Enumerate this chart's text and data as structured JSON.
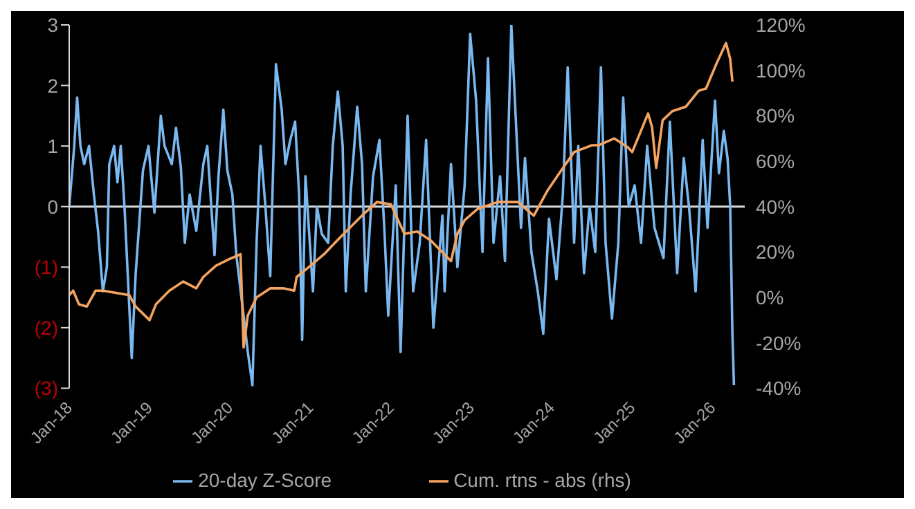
{
  "chart_data": {
    "type": "line",
    "legend": "bottom",
    "grid": false,
    "marker": "none",
    "line_style": "solid",
    "xlim": [
      "2018-01-01",
      "2026-05-27"
    ],
    "xticks": [
      {
        "value": "2018-01-01",
        "label": "Jan-18"
      },
      {
        "value": "2019-01-01",
        "label": "Jan-19"
      },
      {
        "value": "2020-01-01",
        "label": "Jan-20"
      },
      {
        "value": "2021-01-01",
        "label": "Jan-21"
      },
      {
        "value": "2022-01-01",
        "label": "Jan-22"
      },
      {
        "value": "2023-01-01",
        "label": "Jan-23"
      },
      {
        "value": "2024-01-01",
        "label": "Jan-24"
      },
      {
        "value": "2025-01-01",
        "label": "Jan-25"
      },
      {
        "value": "2026-01-01",
        "label": "Jan-26"
      }
    ],
    "ylim": [
      -3,
      3
    ],
    "yticks": [
      {
        "value": -3,
        "label": "(3)"
      },
      {
        "value": -2,
        "label": "(2)"
      },
      {
        "value": -1,
        "label": "(1)"
      },
      0,
      1,
      2,
      3
    ],
    "y2lim": [
      -40,
      120
    ],
    "y2ticks": [
      {
        "value": -40,
        "label": "-40%"
      },
      {
        "value": -20,
        "label": "-20%"
      },
      {
        "value": 0,
        "label": "0%"
      },
      {
        "value": 20,
        "label": "20%"
      },
      {
        "value": 40,
        "label": "40%"
      },
      {
        "value": 60,
        "label": "60%"
      },
      {
        "value": 80,
        "label": "80%"
      },
      {
        "value": 100,
        "label": "100%"
      },
      {
        "value": 120,
        "label": "120%"
      }
    ],
    "ref_lines": [
      {
        "axis": "y",
        "value": 0,
        "color": "#d9d9d9"
      }
    ],
    "series": [
      {
        "name": "20-day Z-Score",
        "color": "#7ab8f0",
        "x": [
          "2018-01-01",
          "2018-01-23",
          "2018-02-06",
          "2018-02-21",
          "2018-03-10",
          "2018-04-01",
          "2018-04-23",
          "2018-05-12",
          "2018-06-03",
          "2018-06-21",
          "2018-07-02",
          "2018-07-24",
          "2018-08-08",
          "2018-08-23",
          "2018-09-09",
          "2018-10-12",
          "2018-10-30",
          "2018-12-02",
          "2018-12-27",
          "2019-01-23",
          "2019-02-21",
          "2019-03-10",
          "2019-04-12",
          "2019-05-01",
          "2019-05-23",
          "2019-06-10",
          "2019-07-02",
          "2019-08-01",
          "2019-09-02",
          "2019-09-20",
          "2019-10-23",
          "2019-11-10",
          "2019-12-02",
          "2019-12-20",
          "2020-01-12",
          "2020-01-30",
          "2020-03-03",
          "2020-03-22",
          "2020-04-12",
          "2020-05-01",
          "2020-05-19",
          "2020-06-10",
          "2020-07-02",
          "2020-07-28",
          "2020-08-23",
          "2020-09-09",
          "2020-10-01",
          "2020-10-23",
          "2020-11-10",
          "2020-11-24",
          "2020-12-09",
          "2021-01-12",
          "2021-01-30",
          "2021-02-21",
          "2021-03-22",
          "2021-04-12",
          "2021-05-05",
          "2021-05-27",
          "2021-06-10",
          "2021-07-02",
          "2021-08-01",
          "2021-08-23",
          "2021-09-09",
          "2021-10-12",
          "2021-11-10",
          "2021-12-02",
          "2021-12-20",
          "2022-01-23",
          "2022-02-14",
          "2022-03-18",
          "2022-04-12",
          "2022-05-12",
          "2022-06-10",
          "2022-07-13",
          "2022-08-23",
          "2022-09-02",
          "2022-10-01",
          "2022-10-30",
          "2022-12-02",
          "2022-12-27",
          "2023-01-23",
          "2023-02-21",
          "2023-03-18",
          "2023-04-12",
          "2023-05-12",
          "2023-06-03",
          "2023-07-02",
          "2023-07-28",
          "2023-08-15",
          "2023-09-02",
          "2023-10-01",
          "2023-10-30",
          "2023-11-24",
          "2023-12-20",
          "2024-01-23",
          "2024-02-21",
          "2024-03-14",
          "2024-04-12",
          "2024-05-01",
          "2024-05-27",
          "2024-06-21",
          "2024-07-17",
          "2024-08-12",
          "2024-09-02",
          "2024-10-01",
          "2024-10-30",
          "2024-11-21",
          "2024-12-16",
          "2025-01-12",
          "2025-02-10",
          "2025-03-10",
          "2025-04-12",
          "2025-05-23",
          "2025-06-21",
          "2025-07-24",
          "2025-08-23",
          "2025-09-17",
          "2025-10-16",
          "2025-11-17",
          "2025-12-09",
          "2026-01-12",
          "2026-01-30",
          "2026-02-21",
          "2026-03-10",
          "2026-03-22",
          "2026-04-01",
          "2026-04-08"
        ],
        "values": [
          0,
          0.96,
          1.8,
          1.0,
          0.7,
          1.0,
          0.2,
          -0.4,
          -1.4,
          -1.0,
          0.7,
          1.0,
          0.4,
          1.0,
          0,
          -2.5,
          -1.1,
          0.6,
          1.0,
          -0.1,
          1.5,
          1.0,
          0.7,
          1.3,
          0.65,
          -0.6,
          0.2,
          -0.4,
          0.7,
          1.0,
          -0.8,
          0.5,
          1.6,
          0.6,
          0.2,
          -0.8,
          -1.8,
          -2.4,
          -2.95,
          -0.6,
          1.0,
          0,
          -1.15,
          2.35,
          1.6,
          0.7,
          1.1,
          1.4,
          0.2,
          -2.2,
          0.5,
          -1.4,
          0,
          -0.45,
          -0.6,
          1.0,
          1.9,
          1.0,
          -1.4,
          0.2,
          1.65,
          0.7,
          -1.4,
          0.5,
          1.1,
          -0.35,
          -1.8,
          0.35,
          -2.4,
          1.5,
          -1.4,
          -0.6,
          1.1,
          -2.0,
          -0.15,
          -1.4,
          0.7,
          -1.0,
          0.35,
          2.85,
          1.75,
          -0.75,
          2.45,
          -0.6,
          0.5,
          -0.9,
          3.0,
          1.0,
          -0.35,
          0.8,
          -0.75,
          -1.4,
          -2.1,
          -0.2,
          -1.2,
          0.2,
          2.3,
          -0.6,
          1.0,
          -1.1,
          0,
          -0.75,
          2.3,
          -0.6,
          -1.85,
          -0.6,
          1.8,
          0,
          0.35,
          -0.6,
          1.0,
          -0.35,
          -0.85,
          1.4,
          -1.1,
          0.8,
          -0.05,
          -1.4,
          1.1,
          -0.35,
          1.75,
          0.55,
          1.25,
          0.8,
          0,
          -2.1,
          -2.95
        ]
      },
      {
        "name": "Cum. rtns - abs (rhs)",
        "color": "#f4a460",
        "axis": "y2",
        "x": [
          "2018-01-01",
          "2018-01-19",
          "2018-02-14",
          "2018-03-22",
          "2018-05-01",
          "2018-06-03",
          "2018-08-01",
          "2018-10-01",
          "2018-10-30",
          "2019-01-01",
          "2019-01-30",
          "2019-04-01",
          "2019-06-03",
          "2019-08-01",
          "2019-09-02",
          "2019-10-30",
          "2020-01-01",
          "2020-02-18",
          "2020-03-03",
          "2020-03-22",
          "2020-05-01",
          "2020-07-02",
          "2020-09-02",
          "2020-10-19",
          "2020-10-30",
          "2021-01-01",
          "2021-03-03",
          "2021-05-01",
          "2021-07-02",
          "2021-09-02",
          "2021-10-30",
          "2022-01-01",
          "2022-03-03",
          "2022-05-01",
          "2022-07-02",
          "2022-10-01",
          "2022-10-30",
          "2022-12-02",
          "2023-01-30",
          "2023-05-01",
          "2023-08-01",
          "2023-10-12",
          "2023-12-13",
          "2024-02-14",
          "2024-04-12",
          "2024-07-02",
          "2024-08-01",
          "2024-10-12",
          "2024-12-13",
          "2025-01-01",
          "2025-03-14",
          "2025-04-01",
          "2025-04-20",
          "2025-05-19",
          "2025-07-02",
          "2025-09-02",
          "2025-10-30",
          "2025-12-02",
          "2026-01-19",
          "2026-03-03",
          "2026-03-22",
          "2026-04-01"
        ],
        "values": [
          1,
          3,
          -3,
          -4,
          3,
          3,
          2,
          1,
          -4,
          -10,
          -3,
          3,
          7,
          4,
          9,
          14,
          17,
          19,
          -22,
          -8,
          0,
          4,
          4,
          3,
          9,
          14,
          19,
          25,
          31,
          37,
          42,
          41,
          28,
          29,
          25,
          16,
          28,
          34,
          39,
          42,
          42,
          36,
          47,
          56,
          64,
          67,
          67,
          70,
          66,
          64,
          81,
          75,
          57,
          78,
          82,
          84,
          91,
          92,
          103,
          112,
          105,
          95
        ]
      }
    ]
  }
}
